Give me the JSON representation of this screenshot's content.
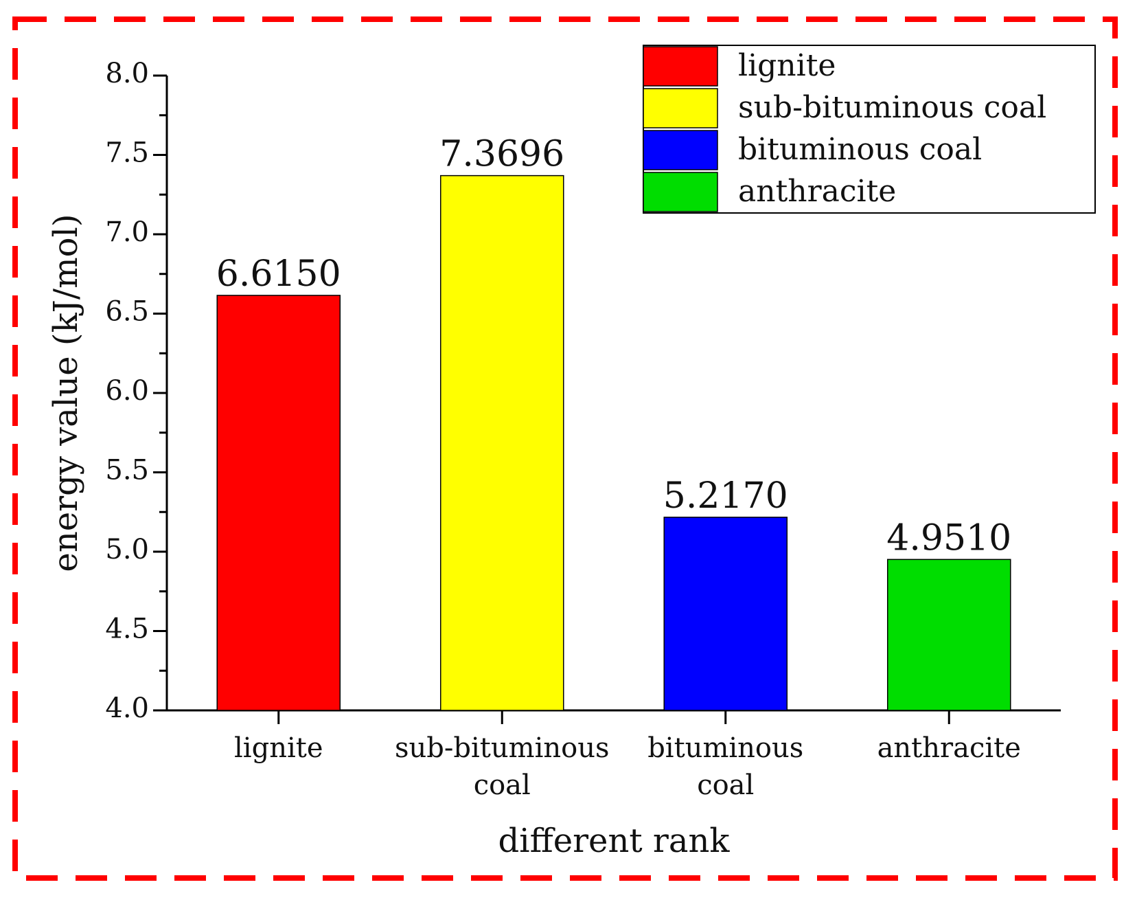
{
  "chart_data": {
    "type": "bar",
    "categories": [
      "lignite",
      "sub-bituminous coal",
      "bituminous coal",
      "anthracite"
    ],
    "category_lines": [
      [
        "lignite"
      ],
      [
        "sub-bituminous",
        "coal"
      ],
      [
        "bituminous",
        "coal"
      ],
      [
        "anthracite"
      ]
    ],
    "values": [
      6.615,
      7.3696,
      5.217,
      4.951
    ],
    "value_labels": [
      "6.6150",
      "7.3696",
      "5.2170",
      "4.9510"
    ],
    "colors": [
      "#ff0000",
      "#ffff00",
      "#0000ff",
      "#00dd00"
    ],
    "xlabel": "different rank",
    "ylabel": "energy value (kJ/mol)",
    "ylim": [
      4.0,
      8.0
    ],
    "yticks": [
      "4.0",
      "4.5",
      "5.0",
      "5.5",
      "6.0",
      "6.5",
      "7.0",
      "7.5",
      "8.0"
    ],
    "legend": {
      "placement": "top-right",
      "entries": [
        "lignite",
        "sub-bituminous coal",
        "bituminous coal",
        "anthracite"
      ]
    },
    "grid": false,
    "frame_color": "#ff0000"
  }
}
